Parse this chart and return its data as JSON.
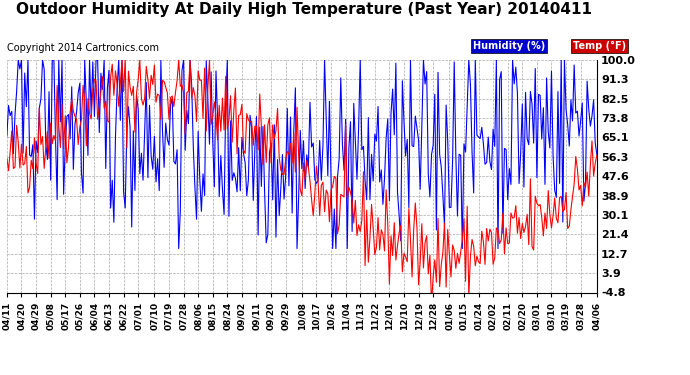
{
  "title": "Outdoor Humidity At Daily High Temperature (Past Year) 20140411",
  "copyright": "Copyright 2014 Cartronics.com",
  "yticks": [
    100.0,
    91.3,
    82.5,
    73.8,
    65.1,
    56.3,
    47.6,
    38.9,
    30.1,
    21.4,
    12.7,
    3.9,
    -4.8
  ],
  "ymin": -4.8,
  "ymax": 100.0,
  "legend_humidity_label": "Humidity (%)",
  "legend_temp_label": "Temp (°F)",
  "humidity_color": "#0000ff",
  "temp_color": "#ff0000",
  "bg_color": "#ffffff",
  "grid_color": "#aaaaaa",
  "title_fontsize": 11,
  "copyright_fontsize": 7,
  "tick_fontsize": 8,
  "legend_bg_humidity": "#0000cc",
  "legend_bg_temp": "#cc0000",
  "legend_text_color": "#ffffff",
  "x_tick_labels": [
    "04/11",
    "04/20",
    "04/29",
    "05/08",
    "05/17",
    "05/26",
    "06/04",
    "06/13",
    "06/22",
    "07/01",
    "07/10",
    "07/19",
    "07/28",
    "08/06",
    "08/15",
    "08/24",
    "09/02",
    "09/11",
    "09/20",
    "09/29",
    "10/08",
    "10/17",
    "10/26",
    "11/04",
    "11/13",
    "11/22",
    "12/01",
    "12/10",
    "12/19",
    "12/28",
    "01/06",
    "01/15",
    "01/24",
    "02/02",
    "02/11",
    "02/20",
    "03/01",
    "03/10",
    "03/19",
    "03/28",
    "04/06"
  ]
}
